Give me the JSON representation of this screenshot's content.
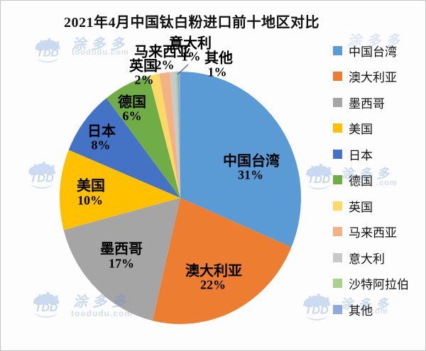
{
  "title": "2021年4月中国钛白粉进口前十地区对比",
  "watermark": {
    "logo_text": "TDD",
    "brand": "涂多多",
    "domain": "toodudu.com",
    "domain_short": ".com"
  },
  "chart_data": {
    "type": "pie",
    "title": "2021年4月中国钛白粉进口前十地区对比",
    "legend_position": "right",
    "slices": [
      {
        "label": "中国台湾",
        "value": 31,
        "percent_label": "31%",
        "color": "#5B9BD5",
        "label_placement": "inside"
      },
      {
        "label": "澳大利亚",
        "value": 22,
        "percent_label": "22%",
        "color": "#ED7D31",
        "label_placement": "inside"
      },
      {
        "label": "墨西哥",
        "value": 17,
        "percent_label": "17%",
        "color": "#A5A5A5",
        "label_placement": "inside"
      },
      {
        "label": "美国",
        "value": 10,
        "percent_label": "10%",
        "color": "#FFC000",
        "label_placement": "inside"
      },
      {
        "label": "日本",
        "value": 8,
        "percent_label": "8%",
        "color": "#4472C4",
        "label_placement": "inside"
      },
      {
        "label": "德国",
        "value": 6,
        "percent_label": "6%",
        "color": "#70AD47",
        "label_placement": "inside"
      },
      {
        "label": "英国",
        "value": 2,
        "percent_label": "2%",
        "color": "#FFD966",
        "label_placement": "outside"
      },
      {
        "label": "马来西亚",
        "value": 2,
        "percent_label": "2%",
        "color": "#F4B183",
        "label_placement": "outside"
      },
      {
        "label": "意大利",
        "value": 1,
        "percent_label": "1%",
        "color": "#C9C9C9",
        "label_placement": "outside-leader"
      },
      {
        "label": "沙特阿拉伯",
        "value": 0,
        "percent_label": "",
        "color": "#A9D18E",
        "label_placement": "none"
      },
      {
        "label": "其他",
        "value": 1,
        "percent_label": "1%",
        "color": "#8FAADC",
        "label_placement": "outside"
      }
    ],
    "legend": [
      "中国台湾",
      "澳大利亚",
      "墨西哥",
      "美国",
      "日本",
      "德国",
      "英国",
      "马来西亚",
      "意大利",
      "沙特阿拉伯",
      "其他"
    ]
  }
}
